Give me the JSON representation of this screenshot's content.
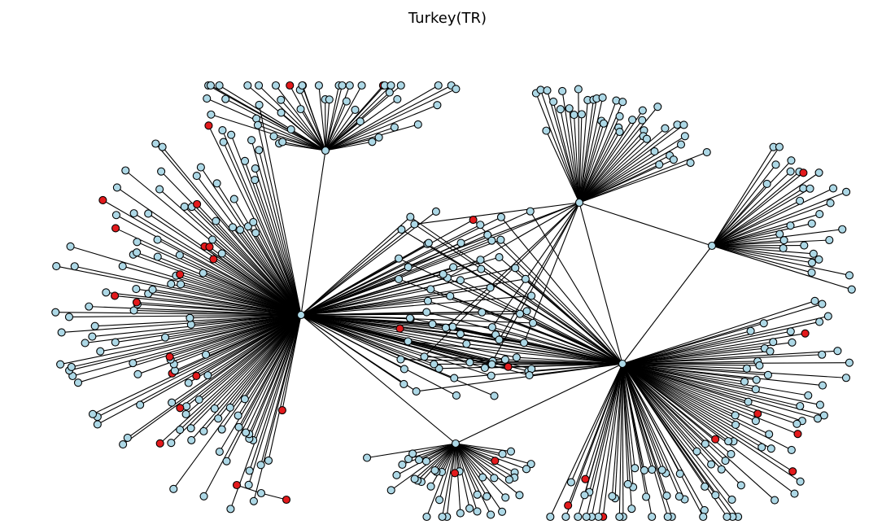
{
  "title": "Turkey(TR)",
  "colors": {
    "default_node": "#add8e6",
    "highlight_node": "#e31a1c",
    "node_stroke": "#000000",
    "edge": "#000000",
    "background": "#ffffff"
  },
  "node_kinds": [
    "default",
    "highlight"
  ],
  "clusters": [
    {
      "id": "hub-left",
      "kind": "default",
      "count": 130,
      "red": 16
    },
    {
      "id": "hub-right",
      "kind": "default",
      "count": 95,
      "red": 8
    },
    {
      "id": "hub-top-right",
      "kind": "default",
      "count": 40,
      "red": 0
    },
    {
      "id": "hub-right-fan",
      "kind": "default",
      "count": 30,
      "red": 1
    },
    {
      "id": "hub-top-left",
      "kind": "default",
      "count": 45,
      "red": 2
    },
    {
      "id": "hub-bottom",
      "kind": "default",
      "count": 40,
      "red": 2
    },
    {
      "id": "middle-group",
      "kind": "default",
      "count": 70,
      "red": 3
    },
    {
      "id": "isolated-chain",
      "kind": "default",
      "count": 3,
      "red": 2
    }
  ]
}
